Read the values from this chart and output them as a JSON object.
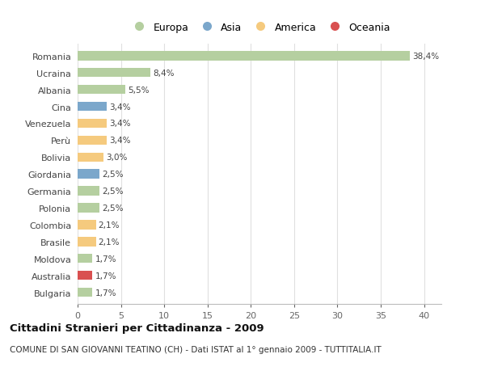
{
  "countries": [
    "Romania",
    "Ucraina",
    "Albania",
    "Cina",
    "Venezuela",
    "Perù",
    "Bolivia",
    "Giordania",
    "Germania",
    "Polonia",
    "Colombia",
    "Brasile",
    "Moldova",
    "Australia",
    "Bulgaria"
  ],
  "values": [
    38.4,
    8.4,
    5.5,
    3.4,
    3.4,
    3.4,
    3.0,
    2.5,
    2.5,
    2.5,
    2.1,
    2.1,
    1.7,
    1.7,
    1.7
  ],
  "labels": [
    "38,4%",
    "8,4%",
    "5,5%",
    "3,4%",
    "3,4%",
    "3,4%",
    "3,0%",
    "2,5%",
    "2,5%",
    "2,5%",
    "2,1%",
    "2,1%",
    "1,7%",
    "1,7%",
    "1,7%"
  ],
  "colors": [
    "#b5cfa0",
    "#b5cfa0",
    "#b5cfa0",
    "#7ba7cb",
    "#f5ca7e",
    "#f5ca7e",
    "#f5ca7e",
    "#7ba7cb",
    "#b5cfa0",
    "#b5cfa0",
    "#f5ca7e",
    "#f5ca7e",
    "#b5cfa0",
    "#d95050",
    "#b5cfa0"
  ],
  "legend_labels": [
    "Europa",
    "Asia",
    "America",
    "Oceania"
  ],
  "legend_colors": [
    "#b5cfa0",
    "#7ba7cb",
    "#f5ca7e",
    "#d95050"
  ],
  "title": "Cittadini Stranieri per Cittadinanza - 2009",
  "subtitle": "COMUNE DI SAN GIOVANNI TEATINO (CH) - Dati ISTAT al 1° gennaio 2009 - TUTTITALIA.IT",
  "xlim": [
    0,
    42
  ],
  "xticks": [
    0,
    5,
    10,
    15,
    20,
    25,
    30,
    35,
    40
  ],
  "background_color": "#ffffff",
  "grid_color": "#e0e0e0",
  "bar_height": 0.55,
  "label_fontsize": 7.5,
  "tick_fontsize": 8.0,
  "title_fontsize": 9.5,
  "subtitle_fontsize": 7.5,
  "legend_fontsize": 9.0
}
